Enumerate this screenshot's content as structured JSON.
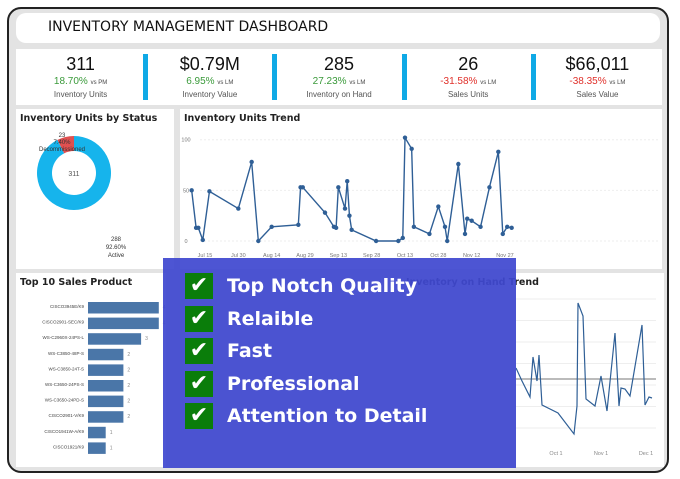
{
  "header": {
    "title": "INVENTORY MANAGEMENT DASHBOARD"
  },
  "kpis": [
    {
      "value": "311",
      "change": "18.70%",
      "vs": "vs PM",
      "label": "Inventory Units",
      "trend": "up"
    },
    {
      "value": "$0.79M",
      "change": "6.95%",
      "vs": "vs LM",
      "label": "Inventory Value",
      "trend": "up"
    },
    {
      "value": "285",
      "change": "27.23%",
      "vs": "vs LM",
      "label": "Inventory on Hand",
      "trend": "up"
    },
    {
      "value": "26",
      "change": "-31.58%",
      "vs": "vs LM",
      "label": "Sales Units",
      "trend": "down"
    },
    {
      "value": "$66,011",
      "change": "-38.35%",
      "vs": "vs LM",
      "label": "Sales Value",
      "trend": "down"
    }
  ],
  "colors": {
    "up": "#3a9a3a",
    "down": "#e0302a",
    "accent": "#0fa9e6",
    "active": "#16b4ec",
    "decommissioned": "#e05050",
    "line": "#2f5f96",
    "bar": "#4a76a8",
    "overlay": "#4048d0",
    "check": "#0a7d0a"
  },
  "donut": {
    "title": "Inventory Units by Status",
    "center": "311",
    "slices": [
      {
        "label": "Active",
        "count": "288",
        "pct": "92.60%",
        "value": 288
      },
      {
        "label": "Decommissioned",
        "count": "23",
        "pct": "7.40%",
        "value": 23
      }
    ]
  },
  "trend": {
    "title": "Inventory Units Trend",
    "yticks": [
      "0",
      "50",
      "100"
    ],
    "xticks": [
      "Jul 15",
      "Jul 30",
      "Aug 14",
      "Aug 29",
      "Sep 13",
      "Sep 28",
      "Oct 13",
      "Oct 28",
      "Nov 12",
      "Nov 27"
    ],
    "points": [
      [
        "Jul 9",
        50
      ],
      [
        "Jul 11",
        13
      ],
      [
        "Jul 12",
        13
      ],
      [
        "Jul 14",
        1
      ],
      [
        "Jul 17",
        49
      ],
      [
        "Jul 30",
        32
      ],
      [
        "Aug 5",
        78
      ],
      [
        "Aug 8",
        0
      ],
      [
        "Aug 14",
        14
      ],
      [
        "Aug 26",
        16
      ],
      [
        "Aug 27",
        53
      ],
      [
        "Aug 28",
        53
      ],
      [
        "Sep 7",
        28
      ],
      [
        "Sep 11",
        14
      ],
      [
        "Sep 12",
        13
      ],
      [
        "Sep 13",
        53
      ],
      [
        "Sep 16",
        32
      ],
      [
        "Sep 17",
        59
      ],
      [
        "Sep 18",
        25
      ],
      [
        "Sep 19",
        11
      ],
      [
        "Sep 30",
        0
      ],
      [
        "Oct 10",
        0
      ],
      [
        "Oct 12",
        3
      ],
      [
        "Oct 13",
        102
      ],
      [
        "Oct 16",
        91
      ],
      [
        "Oct 17",
        14
      ],
      [
        "Oct 24",
        7
      ],
      [
        "Oct 28",
        34
      ],
      [
        "Oct 31",
        14
      ],
      [
        "Nov 1",
        0
      ],
      [
        "Nov 6",
        76
      ],
      [
        "Nov 9",
        7
      ],
      [
        "Nov 10",
        22
      ],
      [
        "Nov 12",
        20
      ],
      [
        "Nov 16",
        14
      ],
      [
        "Nov 20",
        53
      ],
      [
        "Nov 24",
        88
      ],
      [
        "Nov 26",
        7
      ],
      [
        "Nov 28",
        14
      ],
      [
        "Nov 30",
        13
      ]
    ]
  },
  "bars": {
    "title": "Top 10 Sales Product",
    "items": [
      [
        "CISCO3945E/K9",
        4
      ],
      [
        "CISCO2901-SEC/K9",
        4
      ],
      [
        "WS-C2960X-24PS-L",
        3
      ],
      [
        "WS-C3850-48P-S",
        2
      ],
      [
        "WS-C3850-24T-S",
        2
      ],
      [
        "WS-C3650-24PS-S",
        2
      ],
      [
        "WS-C3650-24PD-S",
        2
      ],
      [
        "CISCO2901-V/K9",
        2
      ],
      [
        "CISCO1941W-A/K9",
        1
      ],
      [
        "CISCO1921/K9",
        1
      ]
    ]
  },
  "onhand": {
    "title": "Inventory on Hand Trend",
    "xticks": [
      "Oct 1",
      "Nov 1",
      "Dec 1"
    ]
  },
  "overlay": {
    "items": [
      "Top Notch Quality",
      "Relaible",
      "Fast",
      "Professional",
      "Attention to Detail"
    ]
  }
}
